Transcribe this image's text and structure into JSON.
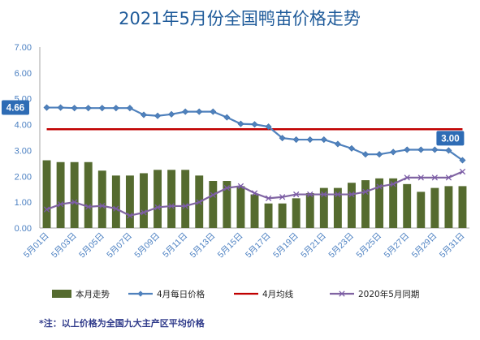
{
  "chart_data": {
    "type": "bar",
    "title": "2021年5月份全国鸭苗价格走势",
    "categories": [
      "5月01日",
      "5月02日",
      "5月03日",
      "5月04日",
      "5月05日",
      "5月06日",
      "5月07日",
      "5月08日",
      "5月09日",
      "5月10日",
      "5月11日",
      "5月12日",
      "5月13日",
      "5月14日",
      "5月15日",
      "5月16日",
      "5月17日",
      "5月18日",
      "5月19日",
      "5月20日",
      "5月21日",
      "5月22日",
      "5月23日",
      "5月24日",
      "5月25日",
      "5月26日",
      "5月27日",
      "5月28日",
      "5月29日",
      "5月30日",
      "5月31日"
    ],
    "x_tick_labels": [
      "5月01日",
      "5月03日",
      "5月05日",
      "5月07日",
      "5月09日",
      "5月11日",
      "5月13日",
      "5月15日",
      "5月17日",
      "5月19日",
      "5月21日",
      "5月23日",
      "5月25日",
      "5月27日",
      "5月29日",
      "5月31日"
    ],
    "y_tick_labels": [
      "0.00",
      "1.00",
      "2.00",
      "3.00",
      "4.00",
      "5.00",
      "6.00",
      "7.00"
    ],
    "ylim": [
      0,
      7
    ],
    "grid": false,
    "legend_position": "bottom",
    "series": [
      {
        "name": "本月走势",
        "kind": "bar",
        "color": "#556b2f",
        "values": [
          2.62,
          2.55,
          2.55,
          2.55,
          2.22,
          2.03,
          2.03,
          2.12,
          2.25,
          2.25,
          2.25,
          2.03,
          1.82,
          1.82,
          1.62,
          1.3,
          0.95,
          0.95,
          1.15,
          1.35,
          1.55,
          1.55,
          1.75,
          1.85,
          1.92,
          1.92,
          1.7,
          1.4,
          1.55,
          1.62,
          1.62
        ]
      },
      {
        "name": "4月每日价格",
        "kind": "line",
        "marker": "diamond",
        "color": "#4f81bd",
        "values": [
          4.66,
          4.66,
          4.64,
          4.64,
          4.64,
          4.64,
          4.64,
          4.38,
          4.34,
          4.4,
          4.5,
          4.5,
          4.5,
          4.28,
          4.03,
          4.01,
          3.92,
          3.48,
          3.42,
          3.42,
          3.42,
          3.25,
          3.08,
          2.85,
          2.85,
          2.94,
          3.03,
          3.03,
          3.03,
          3.0,
          2.62
        ]
      },
      {
        "name": "4月均线",
        "kind": "line",
        "color": "#c00000",
        "values": [
          3.82,
          3.82,
          3.82,
          3.82,
          3.82,
          3.82,
          3.82,
          3.82,
          3.82,
          3.82,
          3.82,
          3.82,
          3.82,
          3.82,
          3.82,
          3.82,
          3.82,
          3.82,
          3.82,
          3.82,
          3.82,
          3.82,
          3.82,
          3.82,
          3.82,
          3.82,
          3.82,
          3.82,
          3.82,
          3.82,
          3.82
        ]
      },
      {
        "name": "2020年5月同期",
        "kind": "line",
        "marker": "x",
        "color": "#8064a2",
        "values": [
          0.72,
          0.92,
          1.0,
          0.82,
          0.86,
          0.75,
          0.48,
          0.6,
          0.8,
          0.85,
          0.85,
          1.0,
          1.28,
          1.55,
          1.62,
          1.35,
          1.15,
          1.2,
          1.3,
          1.3,
          1.3,
          1.3,
          1.3,
          1.4,
          1.6,
          1.7,
          1.95,
          1.95,
          1.95,
          1.95,
          2.18
        ]
      }
    ],
    "callouts": [
      {
        "text": "4.66",
        "series": 1,
        "index": 0
      },
      {
        "text": "3.00",
        "series": 1,
        "index": 29
      }
    ],
    "note": "*注：以上价格为全国九大主产区平均价格"
  }
}
